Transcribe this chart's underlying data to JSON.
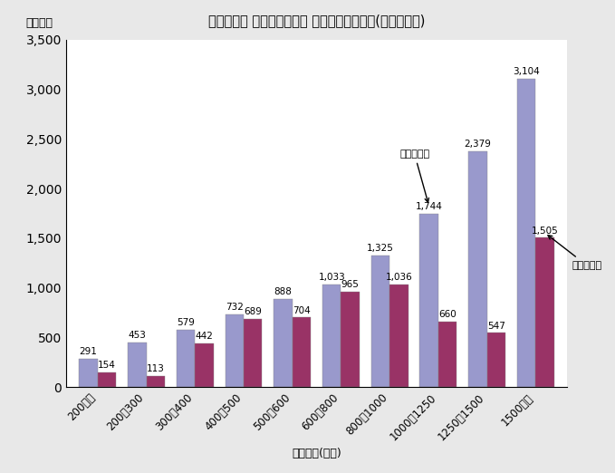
{
  "title": "図表４－７ 年間収入階級別 貯蓄・負債現在高(勤労者世帯)",
  "categories": [
    "200未満",
    "200〜300",
    "300〜400",
    "400〜500",
    "500〜600",
    "600〜800",
    "800〜1000",
    "1000〜1250",
    "1250〜1500",
    "1500以上"
  ],
  "savings": [
    291,
    453,
    579,
    732,
    888,
    1033,
    1325,
    1744,
    2379,
    3104
  ],
  "debts": [
    154,
    113,
    442,
    689,
    704,
    965,
    1036,
    660,
    547,
    1505
  ],
  "savings_color": "#9999CC",
  "debts_color": "#993366",
  "xlabel": "年間収入(万円)",
  "ylabel": "（万円）",
  "ylim": [
    0,
    3500
  ],
  "yticks": [
    0,
    500,
    1000,
    1500,
    2000,
    2500,
    3000,
    3500
  ],
  "savings_label": "貯蓄現在高",
  "debts_label": "負債現在高",
  "savings_annotation_idx": 7,
  "debts_annotation_idx": 9,
  "background_color": "#e8e8e8",
  "plot_background_color": "#ffffff"
}
